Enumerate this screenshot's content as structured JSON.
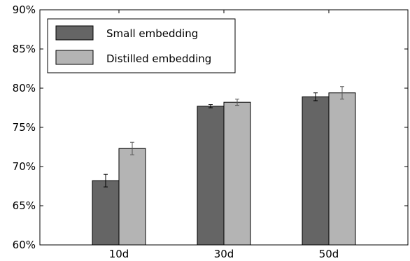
{
  "chart_data": {
    "type": "bar",
    "categories": [
      "10d",
      "30d",
      "50d"
    ],
    "series": [
      {
        "name": "Small embedding",
        "color": "#656565",
        "values": [
          68.2,
          77.7,
          78.9
        ],
        "errors": [
          0.8,
          0.2,
          0.5
        ]
      },
      {
        "name": "Distilled embedding",
        "color": "#b4b4b4",
        "values": [
          72.3,
          78.2,
          79.4
        ],
        "errors": [
          0.8,
          0.4,
          0.8
        ]
      }
    ],
    "ylim": [
      60,
      90
    ],
    "yticks": [
      60,
      65,
      70,
      75,
      80,
      85,
      90
    ],
    "ytick_labels": [
      "60%",
      "65%",
      "70%",
      "75%",
      "80%",
      "85%",
      "90%"
    ],
    "legend_position": "top-left",
    "grid": false
  }
}
